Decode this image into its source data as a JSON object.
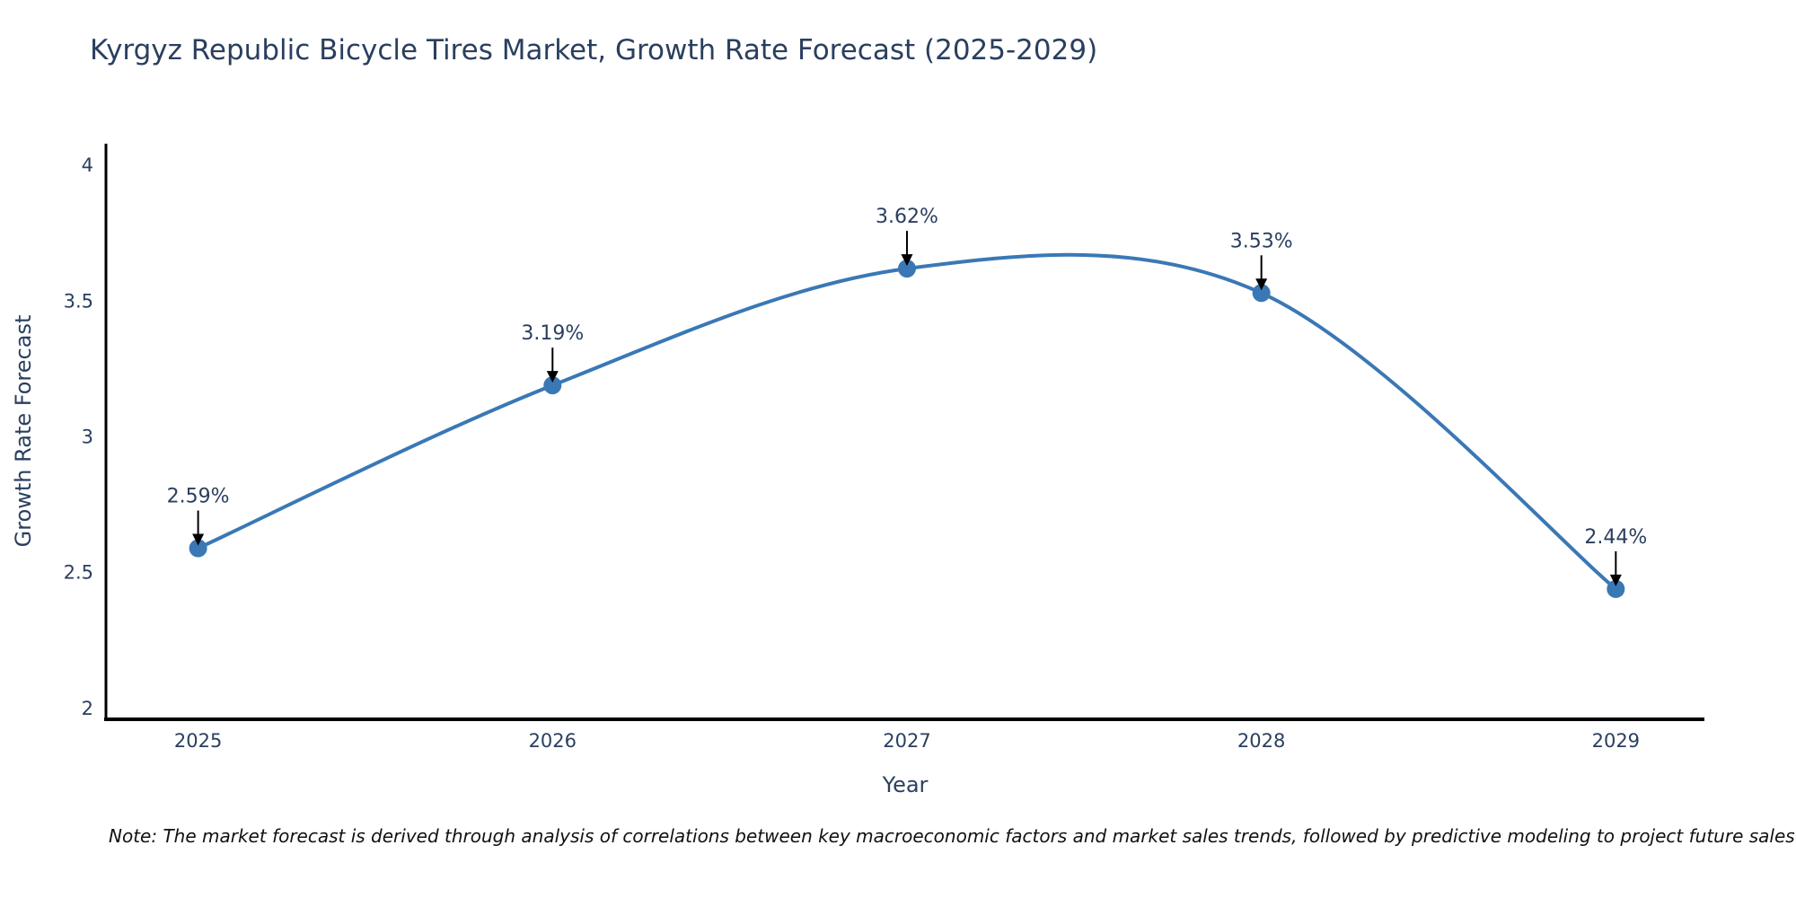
{
  "page": {
    "note": "Note: The market forecast is derived through analysis of correlations between key macroeconomic factors and market sales trends, followed by predictive modeling to project future sales"
  },
  "chart_data": {
    "type": "line",
    "line_shape": "spline",
    "title": "Kyrgyz Republic Bicycle Tires Market, Growth Rate Forecast (2025-2029)",
    "xlabel": "Year",
    "ylabel": "Growth Rate Forecast",
    "x": [
      2025,
      2026,
      2027,
      2028,
      2029
    ],
    "x_tick_labels": [
      "2025",
      "2026",
      "2027",
      "2028",
      "2029"
    ],
    "values": [
      2.59,
      3.19,
      3.62,
      3.53,
      2.44
    ],
    "point_labels": [
      "2.59%",
      "3.19%",
      "3.62%",
      "3.53%",
      "2.44%"
    ],
    "y_ticks": [
      2,
      2.5,
      3,
      3.5,
      4
    ],
    "y_tick_labels": [
      "2",
      "2.5",
      "3",
      "3.5",
      "4"
    ],
    "xlim": [
      2024.74,
      2029.25
    ],
    "ylim": [
      1.96,
      4.08
    ],
    "grid": false,
    "legend": false,
    "annotation_arrows": true,
    "colors": {
      "line": "#3a78b5",
      "marker": "#3a78b5",
      "text": "#2a3f5f",
      "axis": "#000000",
      "arrow": "#000000",
      "note_text": "#111111"
    }
  }
}
